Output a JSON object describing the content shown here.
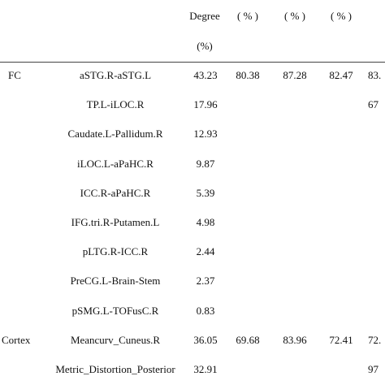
{
  "table": {
    "header": [
      {
        "degree": "Degree",
        "cols": [
          "( % )",
          "( % )",
          "( % )"
        ]
      },
      {
        "degree": "(%)"
      }
    ],
    "rows": [
      {
        "group": "FC",
        "name": "aSTG.R-aSTG.L",
        "degree": "43.23",
        "cols": [
          "80.38",
          "87.28",
          "82.47",
          "83."
        ]
      },
      {
        "name": "TP.L-iLOC.R",
        "degree": "17.96",
        "cols": [
          null,
          null,
          null,
          "67"
        ]
      },
      {
        "name": "Caudate.L-Pallidum.R",
        "degree": "12.93"
      },
      {
        "name": "iLOC.L-aPaHC.R",
        "degree": "9.87"
      },
      {
        "name": "ICC.R-aPaHC.R",
        "degree": "5.39"
      },
      {
        "name": "IFG.tri.R-Putamen.L",
        "degree": "4.98"
      },
      {
        "name": "pLTG.R-ICC.R",
        "degree": "2.44"
      },
      {
        "name": "PreCG.L-Brain-Stem",
        "degree": "2.37"
      },
      {
        "name": "pSMG.L-TOFusC.R",
        "degree": "0.83"
      },
      {
        "group": "Cortex",
        "name": "Meancurv_Cuneus.R",
        "degree": "36.05",
        "cols": [
          "69.68",
          "83.96",
          "72.41",
          "72."
        ]
      },
      {
        "name": "Metric_Distortion_Posterior",
        "degree": "32.91",
        "cols": [
          null,
          null,
          null,
          "97"
        ]
      }
    ]
  }
}
